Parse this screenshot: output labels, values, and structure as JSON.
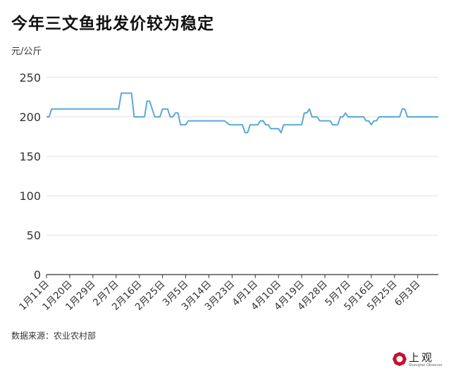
{
  "header": {
    "title": "今年三文鱼批发价较为稳定",
    "unit": "元/公斤"
  },
  "footer": {
    "source": "数据来源：农业农村部",
    "logo_text": "上观",
    "logo_sub": "Shanghai Observer"
  },
  "colors": {
    "line": "#5aa9d6",
    "grid": "#e2e2e2",
    "axis": "#333333"
  },
  "chart_data": {
    "type": "line",
    "title": "今年三文鱼批发价较为稳定",
    "ylabel": "元/公斤",
    "ylim": [
      0,
      250
    ],
    "yticks": [
      0,
      50,
      100,
      150,
      200,
      250
    ],
    "grid": true,
    "x_start": "1月11日",
    "x_end": "6月11日",
    "tick_labels": [
      "1月11日",
      "1月20日",
      "1月29日",
      "2月7日",
      "2月16日",
      "2月25日",
      "3月5日",
      "3月14日",
      "3月23日",
      "4月1日",
      "4月10日",
      "4月19日",
      "4月28日",
      "5月7日",
      "5月16日",
      "5月25日",
      "6月3日"
    ],
    "series": [
      {
        "x": [
          "1月11日",
          "1月12日",
          "1月13日",
          "1月31日",
          "2月8日",
          "2月9日",
          "2月10日",
          "2月13日",
          "2月14日",
          "2月15日",
          "2月16日",
          "2月17日",
          "2月18日",
          "2月19日",
          "2月20日",
          "2月21日",
          "2月22日",
          "2月23日",
          "2月24日",
          "2月25日",
          "2月26日",
          "2月27日",
          "2月28日",
          "2月29日",
          "3月1日",
          "3月2日",
          "3月3日",
          "3月4日",
          "3月5日",
          "3月6日",
          "3月7日",
          "3月8日",
          "3月9日",
          "3月10日",
          "3月11日",
          "3月12日",
          "3月13日",
          "3月14日",
          "3月20日",
          "3月22日",
          "3月26日",
          "3月27日",
          "3月28日",
          "3月29日",
          "3月30日",
          "3月31日",
          "4月1日",
          "4月2日",
          "4月3日",
          "4月4日",
          "4月5日",
          "4月6日",
          "4月7日",
          "4月8日",
          "4月9日",
          "4月10日",
          "4月11日",
          "4月12日",
          "4月13日",
          "4月14日",
          "4月15日",
          "4月16日",
          "4月17日",
          "4月18日",
          "4月19日",
          "4月20日",
          "4月21日",
          "4月22日",
          "4月23日",
          "4月24日",
          "4月25日",
          "4月26日",
          "4月27日",
          "4月28日",
          "4月29日",
          "4月30日",
          "5月1日",
          "5月2日",
          "5月3日",
          "5月4日",
          "5月5日",
          "5月6日",
          "5月7日",
          "5月8日",
          "5月9日",
          "5月10日",
          "5月11日",
          "5月12日",
          "5月13日",
          "5月14日",
          "5月15日",
          "5月16日",
          "5月17日",
          "5月18日",
          "5月19日",
          "5月20日",
          "5月21日",
          "5月22日",
          "5月23日",
          "5月24日",
          "5月25日",
          "5月26日",
          "5月27日",
          "5月28日",
          "5月29日",
          "5月30日",
          "5月31日",
          "6月1日",
          "6月2日",
          "6月3日",
          "6月4日",
          "6月5日",
          "6月6日",
          "6月7日",
          "6月8日",
          "6月9日",
          "6月10日",
          "6月11日"
        ],
        "y": [
          200,
          200,
          210,
          210,
          210,
          230,
          230,
          230,
          200,
          200,
          200,
          200,
          200,
          220,
          220,
          210,
          200,
          200,
          200,
          210,
          210,
          210,
          200,
          200,
          205,
          205,
          190,
          190,
          190,
          195,
          195,
          195,
          195,
          195,
          195,
          195,
          195,
          195,
          195,
          190,
          190,
          190,
          180,
          180,
          190,
          190,
          190,
          190,
          195,
          195,
          190,
          190,
          185,
          185,
          185,
          185,
          180,
          190,
          190,
          190,
          190,
          190,
          190,
          190,
          190,
          205,
          205,
          210,
          200,
          200,
          200,
          195,
          195,
          195,
          195,
          195,
          190,
          190,
          190,
          200,
          200,
          205,
          200,
          200,
          200,
          200,
          200,
          200,
          200,
          195,
          195,
          190,
          195,
          195,
          200,
          200,
          200,
          200,
          200,
          200,
          200,
          200,
          200,
          210,
          210,
          200,
          200,
          200,
          200,
          200,
          200,
          200,
          200,
          200,
          200,
          200,
          200,
          200
        ]
      }
    ]
  }
}
